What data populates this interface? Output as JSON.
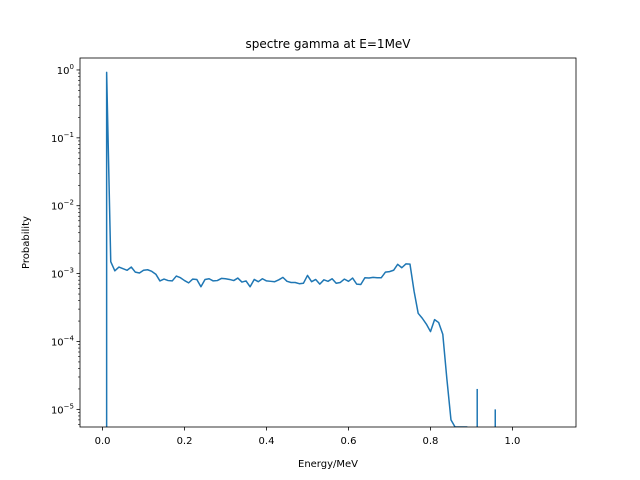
{
  "chart_data": {
    "type": "line",
    "title": "spectre gamma at E=1MeV",
    "xlabel": "Energy/MeV",
    "ylabel": "Probability",
    "xlim": [
      -0.055,
      1.155
    ],
    "ylim": [
      5.5e-06,
      1.5
    ],
    "yscale": "log",
    "grid": false,
    "color": "#1f77b4",
    "x_ticks": [
      {
        "value": 0.0,
        "label": "0.0"
      },
      {
        "value": 0.2,
        "label": "0.2"
      },
      {
        "value": 0.4,
        "label": "0.4"
      },
      {
        "value": 0.6,
        "label": "0.6"
      },
      {
        "value": 0.8,
        "label": "0.8"
      },
      {
        "value": 1.0,
        "label": "1.0"
      }
    ],
    "y_ticks": [
      {
        "value": 1e-05,
        "base": "10",
        "exp": "−5"
      },
      {
        "value": 0.0001,
        "base": "10",
        "exp": "−4"
      },
      {
        "value": 0.001,
        "base": "10",
        "exp": "−3"
      },
      {
        "value": 0.01,
        "base": "10",
        "exp": "−2"
      },
      {
        "value": 0.1,
        "base": "10",
        "exp": "−1"
      },
      {
        "value": 1,
        "base": "10",
        "exp": "0"
      }
    ],
    "series": [
      {
        "x": [
          0.01,
          0.01,
          0.02,
          0.03,
          0.04,
          0.05,
          0.06,
          0.07,
          0.08,
          0.09,
          0.1,
          0.11,
          0.12,
          0.13,
          0.14,
          0.15,
          0.16,
          0.17,
          0.18,
          0.19,
          0.2,
          0.21,
          0.22,
          0.23,
          0.24,
          0.25,
          0.26,
          0.27,
          0.28,
          0.29,
          0.3,
          0.31,
          0.32,
          0.33,
          0.34,
          0.35,
          0.36,
          0.37,
          0.38,
          0.39,
          0.4,
          0.41,
          0.42,
          0.43,
          0.44,
          0.45,
          0.46,
          0.47,
          0.48,
          0.49,
          0.5,
          0.51,
          0.52,
          0.53,
          0.54,
          0.55,
          0.56,
          0.57,
          0.58,
          0.59,
          0.6,
          0.61,
          0.62,
          0.63,
          0.64,
          0.65,
          0.66,
          0.67,
          0.68,
          0.69,
          0.7,
          0.71,
          0.72,
          0.73,
          0.74,
          0.75,
          0.76,
          0.77,
          0.78,
          0.79,
          0.8,
          0.81,
          0.82,
          0.83,
          0.84,
          0.85,
          0.86,
          0.87,
          0.88,
          0.89
        ],
        "y": [
          5.5e-06,
          0.92,
          0.0015,
          0.0011,
          0.00125,
          0.00118,
          0.00112,
          0.00125,
          0.00105,
          0.00102,
          0.00112,
          0.00114,
          0.00108,
          0.00098,
          0.00078,
          0.00083,
          0.00079,
          0.00078,
          0.00092,
          0.00087,
          0.00079,
          0.00073,
          0.00083,
          0.00082,
          0.00064,
          0.00082,
          0.00084,
          0.00078,
          0.00079,
          0.00085,
          0.00084,
          0.00082,
          0.00079,
          0.00086,
          0.00075,
          0.00078,
          0.00064,
          0.00082,
          0.00076,
          0.00084,
          0.00078,
          0.00077,
          0.00076,
          0.00081,
          0.00088,
          0.00077,
          0.00074,
          0.00074,
          0.00071,
          0.00072,
          0.00094,
          0.00076,
          0.00082,
          0.0007,
          0.00081,
          0.00077,
          0.00084,
          0.00072,
          0.00074,
          0.00083,
          0.00077,
          0.00086,
          0.0007,
          0.00069,
          0.00087,
          0.00086,
          0.00088,
          0.00087,
          0.00087,
          0.00105,
          0.00107,
          0.00112,
          0.00137,
          0.00122,
          0.00139,
          0.00138,
          0.00055,
          0.00026,
          0.00022,
          0.00018,
          0.00014,
          0.00021,
          0.00019,
          0.000128,
          2.8e-05,
          7e-06,
          5.5e-06,
          5.5e-06,
          5.5e-06,
          5.5e-06
        ]
      }
    ],
    "spikes": [
      {
        "x": 0.914,
        "y": 2e-05
      },
      {
        "x": 0.958,
        "y": 1e-05
      }
    ]
  }
}
